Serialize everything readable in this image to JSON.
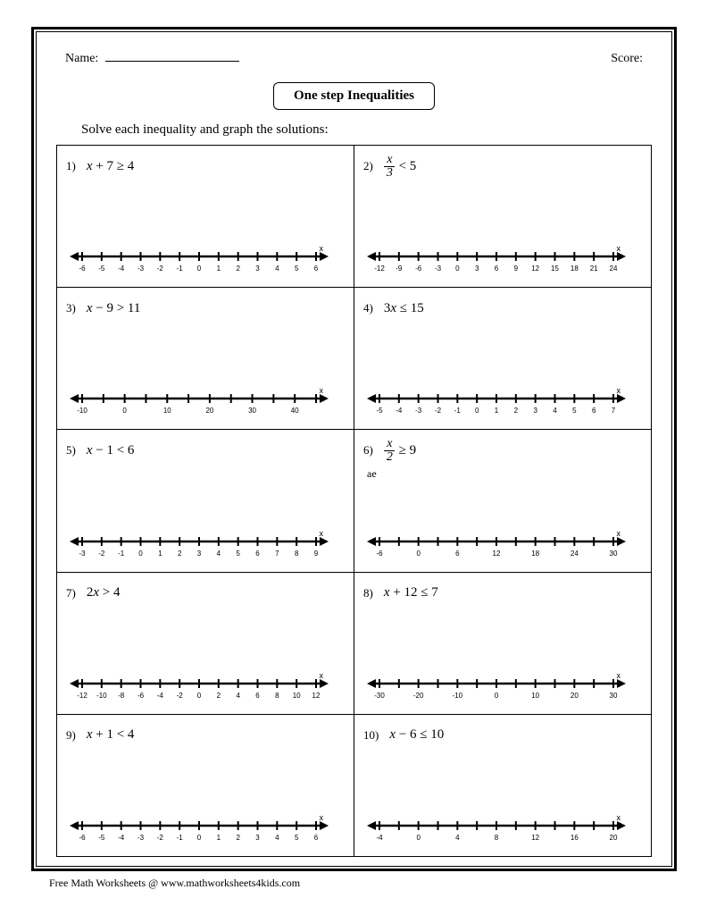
{
  "header": {
    "name_label": "Name:",
    "score_label": "Score:"
  },
  "title": "One step Inequalities",
  "instruction": "Solve each inequality and graph the solutions:",
  "footer": "Free Math Worksheets @ www.mathworksheets4kids.com",
  "numberline_style": {
    "stroke": "#000000",
    "stroke_width": 2.5,
    "tick_height": 10,
    "label_fontsize": 8,
    "axis_label": "x"
  },
  "problems": [
    {
      "num": "1)",
      "expr_html": "<span class='expr'>x</span> + 7 ≥ 4",
      "ticks": [
        "-6",
        "-5",
        "-4",
        "-3",
        "-2",
        "-1",
        "0",
        "1",
        "2",
        "3",
        "4",
        "5",
        "6"
      ]
    },
    {
      "num": "2)",
      "expr_html": "<span class='frac'><span class='num'>x</span><span class='den'>3</span></span> &lt; 5",
      "ticks": [
        "-12",
        "-9",
        "-6",
        "-3",
        "0",
        "3",
        "6",
        "9",
        "12",
        "15",
        "18",
        "21",
        "24"
      ]
    },
    {
      "num": "3)",
      "expr_html": "<span class='expr'>x</span> − 9 &gt; 11",
      "ticks": [
        "-10",
        "",
        "0",
        "",
        "10",
        "",
        "20",
        "",
        "30",
        "",
        "40",
        ""
      ]
    },
    {
      "num": "4)",
      "expr_html": "3<span class='expr'>x</span> ≤ 15",
      "ticks": [
        "-5",
        "-4",
        "-3",
        "-2",
        "-1",
        "0",
        "1",
        "2",
        "3",
        "4",
        "5",
        "6",
        "7"
      ]
    },
    {
      "num": "5)",
      "expr_html": "<span class='expr'>x</span> − 1 &lt; 6",
      "ticks": [
        "-3",
        "-2",
        "-1",
        "0",
        "1",
        "2",
        "3",
        "4",
        "5",
        "6",
        "7",
        "8",
        "9"
      ]
    },
    {
      "num": "6)",
      "expr_html": "<span class='frac'><span class='num'>x</span><span class='den'>2</span></span> ≥ 9",
      "extra": "ae",
      "ticks": [
        "-6",
        "",
        "0",
        "",
        "6",
        "",
        "12",
        "",
        "18",
        "",
        "24",
        "",
        "30"
      ]
    },
    {
      "num": "7)",
      "expr_html": "2<span class='expr'>x</span> &gt; 4",
      "ticks": [
        "-12",
        "-10",
        "-8",
        "-6",
        "-4",
        "-2",
        "0",
        "2",
        "4",
        "6",
        "8",
        "10",
        "12"
      ]
    },
    {
      "num": "8)",
      "expr_html": "<span class='expr'>x</span> + 12 ≤ 7",
      "ticks": [
        "-30",
        "",
        "-20",
        "",
        "-10",
        "",
        "0",
        "",
        "10",
        "",
        "20",
        "",
        "30"
      ]
    },
    {
      "num": "9)",
      "expr_html": "<span class='expr'>x</span> + 1 &lt; 4",
      "ticks": [
        "-6",
        "-5",
        "-4",
        "-3",
        "-2",
        "-1",
        "0",
        "1",
        "2",
        "3",
        "4",
        "5",
        "6"
      ]
    },
    {
      "num": "10)",
      "expr_html": "<span class='expr'>x</span> − 6 ≤ 10",
      "ticks": [
        "-4",
        "",
        "0",
        "",
        "4",
        "",
        "8",
        "",
        "12",
        "",
        "16",
        "",
        "20"
      ]
    }
  ]
}
